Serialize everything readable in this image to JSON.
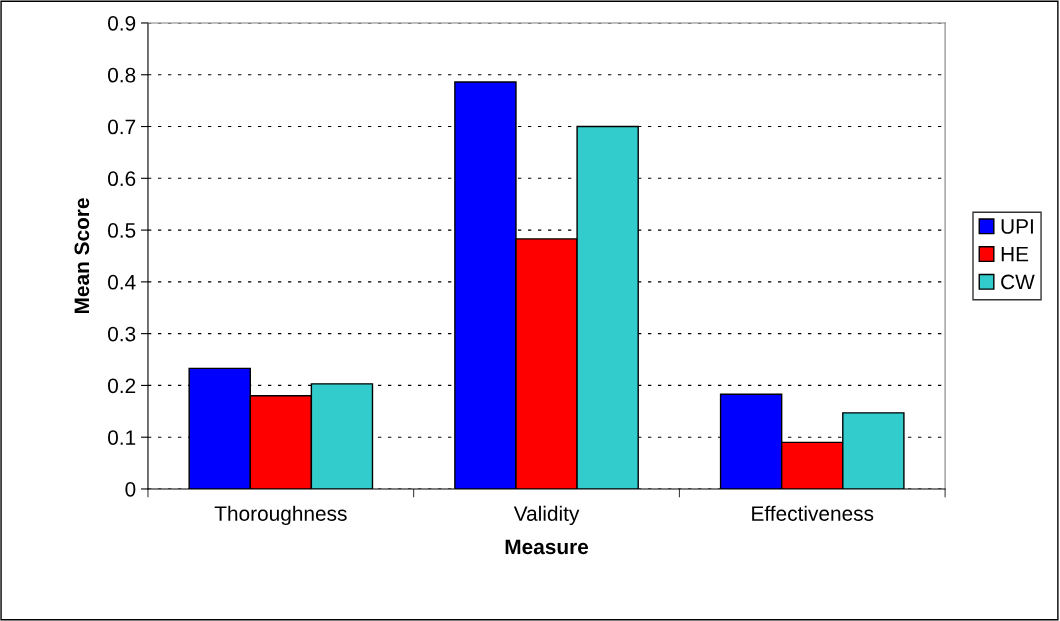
{
  "chart_data": {
    "type": "bar",
    "xlabel": "Measure",
    "ylabel": "Mean Score",
    "categories": [
      "Thoroughness",
      "Validity",
      "Effectiveness"
    ],
    "series": [
      {
        "name": "UPI",
        "color": "#0000ff",
        "values": [
          0.233,
          0.786,
          0.183
        ]
      },
      {
        "name": "HE",
        "color": "#ff0000",
        "values": [
          0.18,
          0.483,
          0.09
        ]
      },
      {
        "name": "CW",
        "color": "#33cccc",
        "values": [
          0.203,
          0.7,
          0.147
        ]
      }
    ],
    "ylim": [
      0,
      0.9
    ],
    "yticks": [
      0,
      0.1,
      0.2,
      0.3,
      0.4,
      0.5,
      0.6,
      0.7,
      0.8,
      0.9
    ],
    "grid": "y",
    "legend": "right"
  }
}
